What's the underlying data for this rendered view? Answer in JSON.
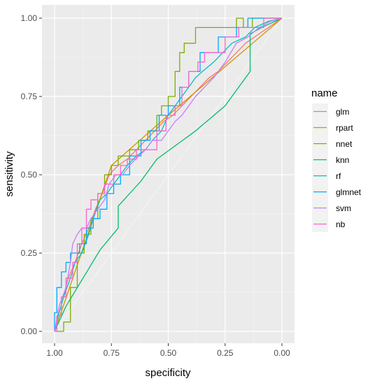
{
  "chart_data": {
    "type": "line",
    "xlabel": "specificity",
    "ylabel": "sensitivity",
    "x_reversed": true,
    "xlim": [
      1.0,
      0.0
    ],
    "ylim": [
      0.0,
      1.0
    ],
    "x_ticks": [
      "1.00",
      "0.75",
      "0.50",
      "0.25",
      "0.00"
    ],
    "x_tick_values": [
      1.0,
      0.75,
      0.5,
      0.25,
      0.0
    ],
    "y_ticks": [
      "0.00",
      "0.25",
      "0.50",
      "0.75",
      "1.00"
    ],
    "y_tick_values": [
      0.0,
      0.25,
      0.5,
      0.75,
      1.0
    ],
    "grid": true,
    "background": "#ebebeb",
    "legend": {
      "title": "name",
      "position": "right"
    },
    "series": [
      {
        "name": "glm",
        "color": "#F8766D",
        "points": [
          [
            1.0,
            0.0
          ],
          [
            0.98,
            0.06
          ],
          [
            0.96,
            0.11
          ],
          [
            0.94,
            0.17
          ],
          [
            0.91,
            0.22
          ],
          [
            0.88,
            0.28
          ],
          [
            0.85,
            0.33
          ],
          [
            0.82,
            0.39
          ],
          [
            0.79,
            0.44
          ],
          [
            0.76,
            0.5
          ],
          [
            0.72,
            0.53
          ],
          [
            0.68,
            0.55
          ],
          [
            0.64,
            0.58
          ],
          [
            0.6,
            0.61
          ],
          [
            0.56,
            0.64
          ],
          [
            0.52,
            0.67
          ],
          [
            0.48,
            0.69
          ],
          [
            0.44,
            0.72
          ],
          [
            0.4,
            0.75
          ],
          [
            0.36,
            0.78
          ],
          [
            0.32,
            0.81
          ],
          [
            0.28,
            0.83
          ],
          [
            0.24,
            0.86
          ],
          [
            0.2,
            0.89
          ],
          [
            0.16,
            0.92
          ],
          [
            0.12,
            0.94
          ],
          [
            0.08,
            0.96
          ],
          [
            0.04,
            0.98
          ],
          [
            0.0,
            1.0
          ]
        ]
      },
      {
        "name": "rpart",
        "color": "#CD9600",
        "points": [
          [
            1.0,
            0.0
          ],
          [
            0.75,
            0.53
          ],
          [
            0.5,
            0.69
          ],
          [
            0.0,
            1.0
          ]
        ]
      },
      {
        "name": "nnet",
        "color": "#7CAE00",
        "points": [
          [
            1.0,
            0.0
          ],
          [
            0.96,
            0.0
          ],
          [
            0.96,
            0.03
          ],
          [
            0.93,
            0.03
          ],
          [
            0.93,
            0.14
          ],
          [
            0.9,
            0.14
          ],
          [
            0.9,
            0.25
          ],
          [
            0.87,
            0.25
          ],
          [
            0.87,
            0.31
          ],
          [
            0.84,
            0.31
          ],
          [
            0.84,
            0.36
          ],
          [
            0.81,
            0.36
          ],
          [
            0.81,
            0.44
          ],
          [
            0.78,
            0.44
          ],
          [
            0.78,
            0.5
          ],
          [
            0.75,
            0.5
          ],
          [
            0.75,
            0.53
          ],
          [
            0.72,
            0.53
          ],
          [
            0.72,
            0.56
          ],
          [
            0.67,
            0.56
          ],
          [
            0.67,
            0.58
          ],
          [
            0.63,
            0.58
          ],
          [
            0.63,
            0.61
          ],
          [
            0.59,
            0.61
          ],
          [
            0.59,
            0.64
          ],
          [
            0.55,
            0.64
          ],
          [
            0.55,
            0.69
          ],
          [
            0.53,
            0.69
          ],
          [
            0.53,
            0.72
          ],
          [
            0.5,
            0.72
          ],
          [
            0.5,
            0.75
          ],
          [
            0.47,
            0.75
          ],
          [
            0.47,
            0.83
          ],
          [
            0.45,
            0.83
          ],
          [
            0.45,
            0.89
          ],
          [
            0.43,
            0.89
          ],
          [
            0.43,
            0.92
          ],
          [
            0.38,
            0.92
          ],
          [
            0.38,
            0.97
          ],
          [
            0.2,
            0.97
          ],
          [
            0.2,
            1.0
          ],
          [
            0.17,
            1.0
          ],
          [
            0.17,
            0.97
          ],
          [
            0.13,
            0.97
          ],
          [
            0.13,
            1.0
          ],
          [
            0.0,
            1.0
          ]
        ]
      },
      {
        "name": "knn",
        "color": "#00BE67",
        "points": [
          [
            1.0,
            0.0
          ],
          [
            0.95,
            0.08
          ],
          [
            0.9,
            0.14
          ],
          [
            0.85,
            0.2
          ],
          [
            0.8,
            0.26
          ],
          [
            0.72,
            0.33
          ],
          [
            0.72,
            0.4
          ],
          [
            0.62,
            0.48
          ],
          [
            0.55,
            0.55
          ],
          [
            0.38,
            0.64
          ],
          [
            0.25,
            0.72
          ],
          [
            0.14,
            0.83
          ],
          [
            0.14,
            0.95
          ],
          [
            0.09,
            0.97
          ],
          [
            0.0,
            1.0
          ]
        ]
      },
      {
        "name": "rf",
        "color": "#00BFC4",
        "points": [
          [
            1.0,
            0.0
          ],
          [
            0.98,
            0.06
          ],
          [
            0.96,
            0.11
          ],
          [
            0.93,
            0.17
          ],
          [
            0.91,
            0.22
          ],
          [
            0.88,
            0.25
          ],
          [
            0.85,
            0.31
          ],
          [
            0.83,
            0.36
          ],
          [
            0.8,
            0.42
          ],
          [
            0.77,
            0.44
          ],
          [
            0.74,
            0.47
          ],
          [
            0.71,
            0.5
          ],
          [
            0.68,
            0.53
          ],
          [
            0.64,
            0.56
          ],
          [
            0.6,
            0.58
          ],
          [
            0.57,
            0.61
          ],
          [
            0.53,
            0.64
          ],
          [
            0.5,
            0.69
          ],
          [
            0.47,
            0.72
          ],
          [
            0.44,
            0.75
          ],
          [
            0.41,
            0.78
          ],
          [
            0.38,
            0.81
          ],
          [
            0.35,
            0.83
          ],
          [
            0.3,
            0.86
          ],
          [
            0.26,
            0.89
          ],
          [
            0.22,
            0.92
          ],
          [
            0.16,
            0.94
          ],
          [
            0.12,
            0.97
          ],
          [
            0.06,
            0.99
          ],
          [
            0.0,
            1.0
          ]
        ]
      },
      {
        "name": "glmnet",
        "color": "#00A9FF",
        "points": [
          [
            1.0,
            0.0
          ],
          [
            1.0,
            0.06
          ],
          [
            0.99,
            0.06
          ],
          [
            0.99,
            0.14
          ],
          [
            0.97,
            0.14
          ],
          [
            0.97,
            0.19
          ],
          [
            0.95,
            0.19
          ],
          [
            0.95,
            0.22
          ],
          [
            0.93,
            0.22
          ],
          [
            0.93,
            0.25
          ],
          [
            0.89,
            0.25
          ],
          [
            0.89,
            0.28
          ],
          [
            0.86,
            0.28
          ],
          [
            0.86,
            0.33
          ],
          [
            0.83,
            0.33
          ],
          [
            0.83,
            0.36
          ],
          [
            0.8,
            0.36
          ],
          [
            0.8,
            0.39
          ],
          [
            0.77,
            0.39
          ],
          [
            0.77,
            0.44
          ],
          [
            0.74,
            0.44
          ],
          [
            0.74,
            0.47
          ],
          [
            0.71,
            0.47
          ],
          [
            0.71,
            0.5
          ],
          [
            0.67,
            0.5
          ],
          [
            0.67,
            0.56
          ],
          [
            0.62,
            0.56
          ],
          [
            0.62,
            0.61
          ],
          [
            0.58,
            0.61
          ],
          [
            0.58,
            0.64
          ],
          [
            0.54,
            0.64
          ],
          [
            0.54,
            0.69
          ],
          [
            0.5,
            0.69
          ],
          [
            0.5,
            0.72
          ],
          [
            0.45,
            0.72
          ],
          [
            0.45,
            0.78
          ],
          [
            0.41,
            0.78
          ],
          [
            0.41,
            0.83
          ],
          [
            0.36,
            0.83
          ],
          [
            0.36,
            0.89
          ],
          [
            0.28,
            0.89
          ],
          [
            0.28,
            0.94
          ],
          [
            0.2,
            0.94
          ],
          [
            0.2,
            0.97
          ],
          [
            0.15,
            0.97
          ],
          [
            0.15,
            1.0
          ],
          [
            0.0,
            1.0
          ]
        ]
      },
      {
        "name": "svm",
        "color": "#C77CFF",
        "points": [
          [
            1.0,
            0.0
          ],
          [
            0.98,
            0.08
          ],
          [
            0.95,
            0.14
          ],
          [
            0.93,
            0.22
          ],
          [
            0.92,
            0.28
          ],
          [
            0.9,
            0.31
          ],
          [
            0.88,
            0.33
          ],
          [
            0.86,
            0.33
          ],
          [
            0.84,
            0.36
          ],
          [
            0.81,
            0.39
          ],
          [
            0.78,
            0.42
          ],
          [
            0.76,
            0.47
          ],
          [
            0.73,
            0.5
          ],
          [
            0.7,
            0.5
          ],
          [
            0.67,
            0.53
          ],
          [
            0.63,
            0.56
          ],
          [
            0.6,
            0.58
          ],
          [
            0.57,
            0.61
          ],
          [
            0.53,
            0.61
          ],
          [
            0.5,
            0.64
          ],
          [
            0.47,
            0.67
          ],
          [
            0.44,
            0.69
          ],
          [
            0.41,
            0.72
          ],
          [
            0.38,
            0.75
          ],
          [
            0.34,
            0.78
          ],
          [
            0.3,
            0.81
          ],
          [
            0.25,
            0.86
          ],
          [
            0.2,
            0.92
          ],
          [
            0.15,
            0.94
          ],
          [
            0.1,
            0.97
          ],
          [
            0.05,
            0.99
          ],
          [
            0.0,
            1.0
          ]
        ]
      },
      {
        "name": "nb",
        "color": "#FF61CC",
        "points": [
          [
            1.0,
            0.0
          ],
          [
            0.99,
            0.0
          ],
          [
            0.99,
            0.05
          ],
          [
            0.97,
            0.05
          ],
          [
            0.97,
            0.11
          ],
          [
            0.95,
            0.11
          ],
          [
            0.95,
            0.17
          ],
          [
            0.92,
            0.17
          ],
          [
            0.92,
            0.22
          ],
          [
            0.9,
            0.22
          ],
          [
            0.9,
            0.28
          ],
          [
            0.88,
            0.28
          ],
          [
            0.88,
            0.33
          ],
          [
            0.86,
            0.33
          ],
          [
            0.86,
            0.39
          ],
          [
            0.84,
            0.39
          ],
          [
            0.84,
            0.42
          ],
          [
            0.81,
            0.42
          ],
          [
            0.81,
            0.44
          ],
          [
            0.78,
            0.44
          ],
          [
            0.78,
            0.47
          ],
          [
            0.74,
            0.47
          ],
          [
            0.74,
            0.5
          ],
          [
            0.71,
            0.5
          ],
          [
            0.71,
            0.53
          ],
          [
            0.68,
            0.53
          ],
          [
            0.68,
            0.55
          ],
          [
            0.64,
            0.55
          ],
          [
            0.64,
            0.58
          ],
          [
            0.55,
            0.58
          ],
          [
            0.55,
            0.64
          ],
          [
            0.51,
            0.64
          ],
          [
            0.51,
            0.69
          ],
          [
            0.47,
            0.69
          ],
          [
            0.47,
            0.72
          ],
          [
            0.44,
            0.72
          ],
          [
            0.44,
            0.78
          ],
          [
            0.41,
            0.78
          ],
          [
            0.41,
            0.83
          ],
          [
            0.37,
            0.83
          ],
          [
            0.37,
            0.86
          ],
          [
            0.34,
            0.86
          ],
          [
            0.34,
            0.89
          ],
          [
            0.25,
            0.89
          ],
          [
            0.25,
            0.94
          ],
          [
            0.19,
            0.94
          ],
          [
            0.19,
            0.97
          ],
          [
            0.08,
            0.97
          ],
          [
            0.08,
            1.0
          ],
          [
            0.0,
            1.0
          ]
        ]
      }
    ]
  }
}
